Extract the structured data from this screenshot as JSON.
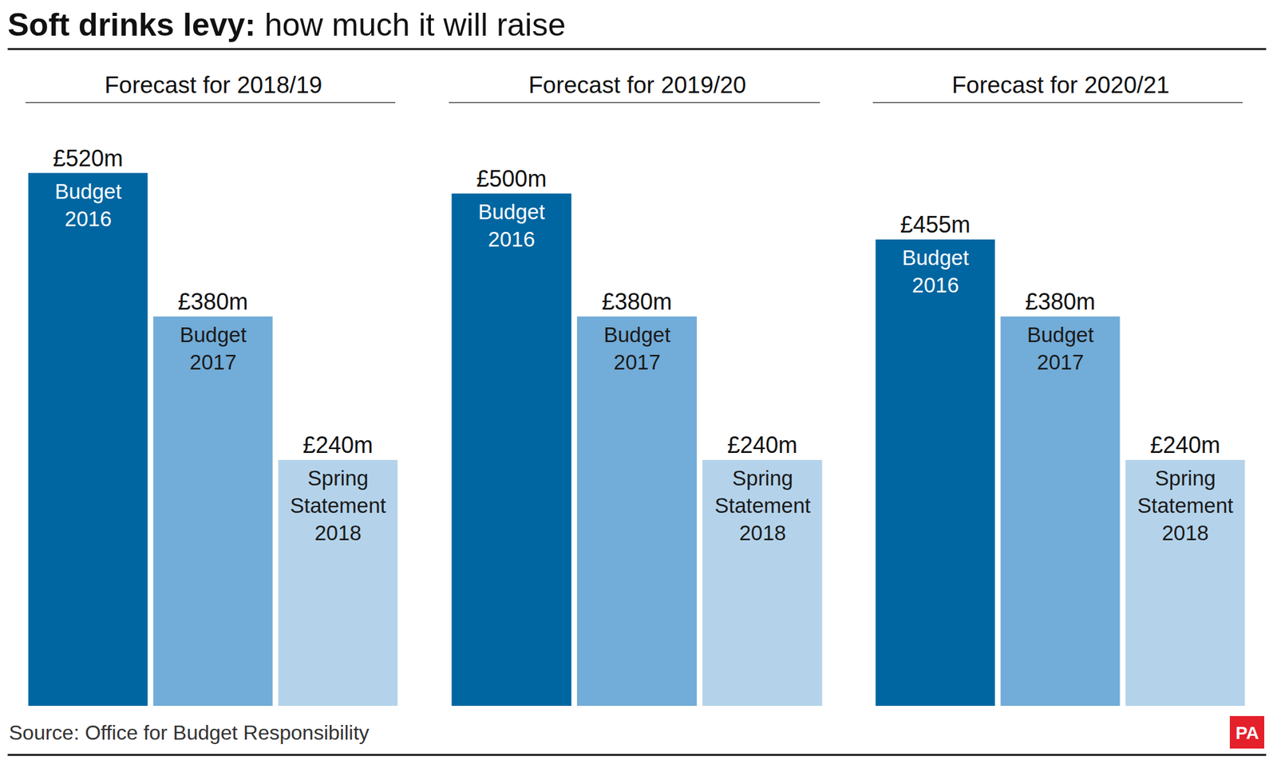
{
  "title": "Soft drinks levy: how much it will raise",
  "source": "Source: Office for Budget Responsibility",
  "logo": "PA",
  "chart_data": [
    {
      "type": "bar",
      "title": "Forecast for 2018/19",
      "categories": [
        "Budget 2016",
        "Budget 2017",
        "Spring Statement 2018"
      ],
      "values": [
        520,
        380,
        240
      ],
      "value_labels": [
        "£520m",
        "£380m",
        "£240m"
      ],
      "colors": [
        "#0066a1",
        "#72acd8",
        "#b4d3ea"
      ],
      "ylim": [
        0,
        580
      ],
      "data_labels": true,
      "tick_labels": false,
      "grid": false
    },
    {
      "type": "bar",
      "title": "Forecast for 2019/20",
      "categories": [
        "Budget 2016",
        "Budget 2017",
        "Spring Statement 2018"
      ],
      "values": [
        500,
        380,
        240
      ],
      "value_labels": [
        "£500m",
        "£380m",
        "£240m"
      ],
      "colors": [
        "#0066a1",
        "#72acd8",
        "#b4d3ea"
      ],
      "ylim": [
        0,
        580
      ],
      "data_labels": true,
      "tick_labels": false,
      "grid": false
    },
    {
      "type": "bar",
      "title": "Forecast for 2020/21",
      "categories": [
        "Budget 2016",
        "Budget 2017",
        "Spring Statement 2018"
      ],
      "values": [
        455,
        380,
        240
      ],
      "value_labels": [
        "£455m",
        "£380m",
        "£240m"
      ],
      "colors": [
        "#0066a1",
        "#72acd8",
        "#b4d3ea"
      ],
      "ylim": [
        0,
        580
      ],
      "data_labels": true,
      "tick_labels": false,
      "grid": false
    }
  ]
}
